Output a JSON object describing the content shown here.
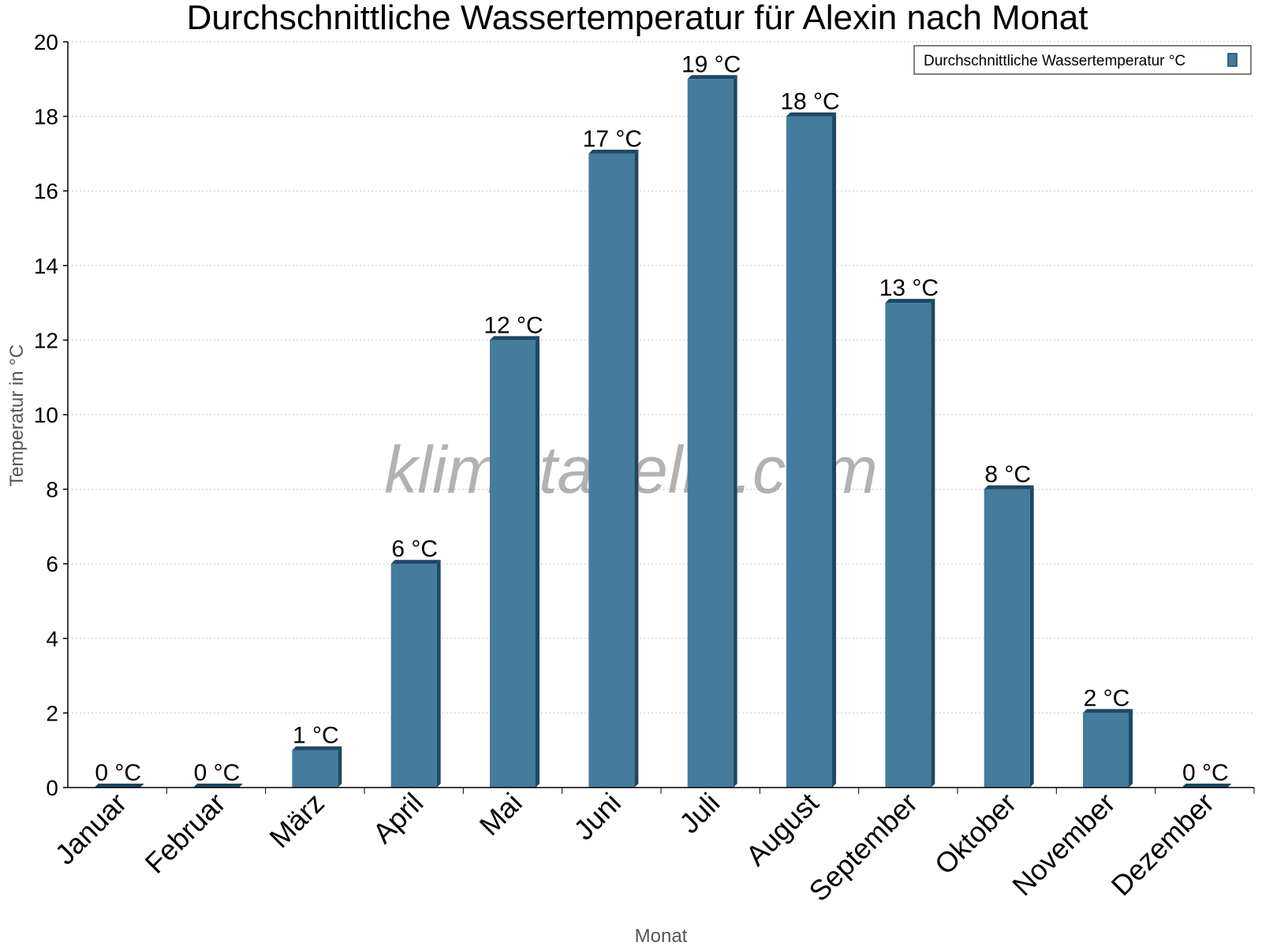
{
  "chart_data": {
    "type": "bar",
    "title": "Durchschnittliche Wassertemperatur für Alexin nach Monat",
    "xlabel": "Monat",
    "ylabel": "Temperatur in °C",
    "ylim": [
      0,
      20
    ],
    "yticks": [
      0,
      2,
      4,
      6,
      8,
      10,
      12,
      14,
      16,
      18,
      20
    ],
    "grid": true,
    "legend_position": "top-right",
    "categories": [
      "Januar",
      "Februar",
      "März",
      "April",
      "Mai",
      "Juni",
      "Juli",
      "August",
      "September",
      "Oktober",
      "November",
      "Dezember"
    ],
    "series": [
      {
        "name": "Durchschnittliche Wassertemperatur °C",
        "color": "#457b9d",
        "values": [
          0,
          0,
          1,
          6,
          12,
          17,
          19,
          18,
          13,
          8,
          2,
          0
        ],
        "data_labels": [
          "0 °C",
          "0 °C",
          "1 °C",
          "6 °C",
          "12 °C",
          "17 °C",
          "19 °C",
          "18 °C",
          "13 °C",
          "8 °C",
          "2 °C",
          "0 °C"
        ]
      }
    ]
  },
  "watermark": "klimatabelle.com"
}
